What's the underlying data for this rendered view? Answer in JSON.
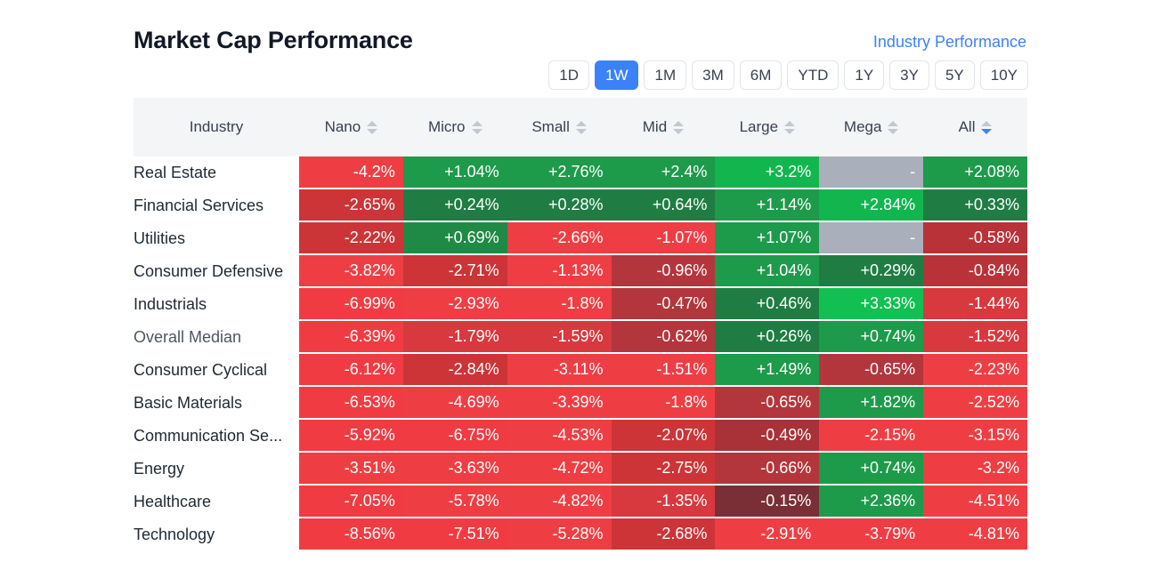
{
  "title": "Market Cap Performance",
  "industry_link": "Industry Performance",
  "periods": [
    "1D",
    "1W",
    "1M",
    "3M",
    "6M",
    "YTD",
    "1Y",
    "3Y",
    "5Y",
    "10Y"
  ],
  "active_period": "1W",
  "columns": {
    "industry": "Industry",
    "caps": [
      "Nano",
      "Micro",
      "Small",
      "Mid",
      "Large",
      "Mega",
      "All"
    ],
    "sorted": "All"
  },
  "rows": [
    {
      "label": "Real Estate",
      "values": [
        "-4.2%",
        "+1.04%",
        "+2.76%",
        "+2.4%",
        "+3.2%",
        "-",
        "+2.08%"
      ],
      "colors": [
        "#ee3e44",
        "#1e9a4b",
        "#1e9a4b",
        "#1e9a4b",
        "#12b64f",
        "#a9afbb",
        "#1e9a4b"
      ]
    },
    {
      "label": "Financial Services",
      "values": [
        "-2.65%",
        "+0.24%",
        "+0.28%",
        "+0.64%",
        "+1.14%",
        "+2.84%",
        "+0.33%"
      ],
      "colors": [
        "#cc3438",
        "#1f7d43",
        "#1f7d43",
        "#1f7d43",
        "#1e9a4b",
        "#12b64f",
        "#1f7d43"
      ]
    },
    {
      "label": "Utilities",
      "values": [
        "-2.22%",
        "+0.69%",
        "-2.66%",
        "-1.07%",
        "+1.07%",
        "-",
        "-0.58%"
      ],
      "colors": [
        "#cc3438",
        "#1f8a45",
        "#ee3e44",
        "#ee3e44",
        "#1e9a4b",
        "#a9afbb",
        "#b83238"
      ]
    },
    {
      "label": "Consumer Defensive",
      "values": [
        "-3.82%",
        "-2.71%",
        "-1.13%",
        "-0.96%",
        "+1.04%",
        "+0.29%",
        "-0.84%"
      ],
      "colors": [
        "#ee3e44",
        "#cc3438",
        "#ee3e44",
        "#b3363c",
        "#1e9a4b",
        "#1f7d43",
        "#b83238"
      ]
    },
    {
      "label": "Industrials",
      "values": [
        "-6.99%",
        "-2.93%",
        "-1.8%",
        "-0.47%",
        "+0.46%",
        "+3.33%",
        "-1.44%"
      ],
      "colors": [
        "#f03b42",
        "#ee3e44",
        "#ee3e44",
        "#b3363c",
        "#1f7d43",
        "#12c052",
        "#d7393e"
      ]
    },
    {
      "label": "Overall Median",
      "values": [
        "-6.39%",
        "-1.79%",
        "-1.59%",
        "-0.62%",
        "+0.26%",
        "+0.74%",
        "-1.52%"
      ],
      "colors": [
        "#f03b42",
        "#d7393e",
        "#d7393e",
        "#b3363c",
        "#1f7d43",
        "#1e9a4b",
        "#d7393e"
      ]
    },
    {
      "label": "Consumer Cyclical",
      "values": [
        "-6.12%",
        "-2.84%",
        "-3.11%",
        "-1.51%",
        "+1.49%",
        "-0.65%",
        "-2.23%"
      ],
      "colors": [
        "#f03b42",
        "#cc3438",
        "#ee3e44",
        "#ee3e44",
        "#1e9a4b",
        "#b3363c",
        "#ee3e44"
      ]
    },
    {
      "label": "Basic Materials",
      "values": [
        "-6.53%",
        "-4.69%",
        "-3.39%",
        "-1.8%",
        "-0.65%",
        "+1.82%",
        "-2.52%"
      ],
      "colors": [
        "#f03b42",
        "#ee3e44",
        "#ee3e44",
        "#ee3e44",
        "#b3363c",
        "#1e9a4b",
        "#ee3e44"
      ]
    },
    {
      "label": "Communication Se...",
      "values": [
        "-5.92%",
        "-6.75%",
        "-4.53%",
        "-2.07%",
        "-0.49%",
        "-2.15%",
        "-3.15%"
      ],
      "colors": [
        "#f03b42",
        "#f03b42",
        "#ee3e44",
        "#cc3438",
        "#a83238",
        "#ee3e44",
        "#ee3e44"
      ]
    },
    {
      "label": "Energy",
      "values": [
        "-3.51%",
        "-3.63%",
        "-4.72%",
        "-2.75%",
        "-0.66%",
        "+0.74%",
        "-3.2%"
      ],
      "colors": [
        "#ee3e44",
        "#ee3e44",
        "#ee3e44",
        "#cc3438",
        "#b3363c",
        "#1e9a4b",
        "#ee3e44"
      ]
    },
    {
      "label": "Healthcare",
      "values": [
        "-7.05%",
        "-5.78%",
        "-4.82%",
        "-1.35%",
        "-0.15%",
        "+2.36%",
        "-4.51%"
      ],
      "colors": [
        "#f03b42",
        "#ee3e44",
        "#ee3e44",
        "#d7393e",
        "#7a2f36",
        "#1e9a4b",
        "#ee3e44"
      ]
    },
    {
      "label": "Technology",
      "values": [
        "-8.56%",
        "-7.51%",
        "-5.28%",
        "-2.68%",
        "-2.91%",
        "-3.79%",
        "-4.81%"
      ],
      "colors": [
        "#f03b42",
        "#f03b42",
        "#ee3e44",
        "#cc3438",
        "#ee3e44",
        "#ee3e44",
        "#ee3e44"
      ]
    }
  ]
}
